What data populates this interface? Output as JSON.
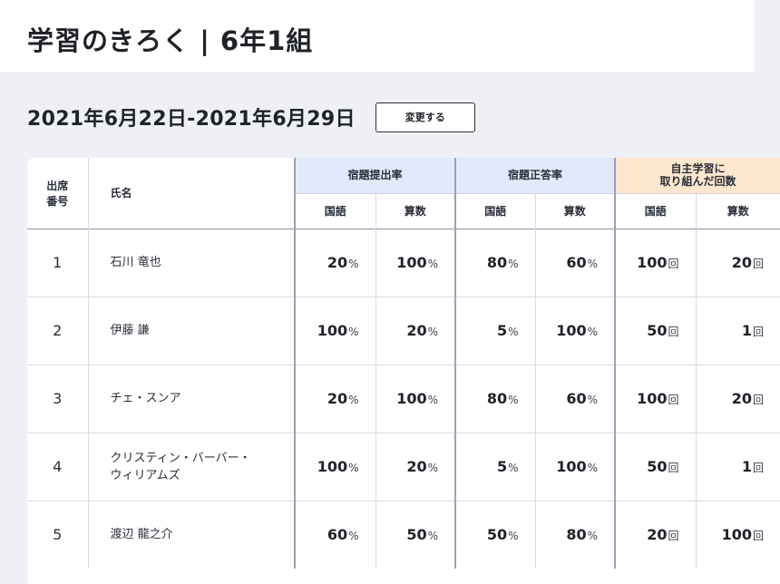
{
  "header": {
    "title": "学習のきろく | 6年1組"
  },
  "range": {
    "label": "2021年6月22日-2021年6月29日",
    "change_button": "変更する"
  },
  "table": {
    "col_no": [
      "出席",
      "番号"
    ],
    "col_name": "氏名",
    "groups": [
      {
        "label": [
          "宿題提出率"
        ],
        "subs": [
          "国語",
          "算数"
        ]
      },
      {
        "label": [
          "宿題正答率"
        ],
        "subs": [
          "国語",
          "算数"
        ]
      },
      {
        "label": [
          "自主学習に",
          "取り組んだ回数"
        ],
        "subs": [
          "国語",
          "算数"
        ]
      }
    ],
    "rows": [
      {
        "no": "1",
        "name": [
          "石川 竜也"
        ],
        "values": [
          [
            "20",
            "%"
          ],
          [
            "100",
            "%"
          ],
          [
            "80",
            "%"
          ],
          [
            "60",
            "%"
          ],
          [
            "100",
            "回"
          ],
          [
            "20",
            "回"
          ]
        ]
      },
      {
        "no": "2",
        "name": [
          "伊藤 謙"
        ],
        "values": [
          [
            "100",
            "%"
          ],
          [
            "20",
            "%"
          ],
          [
            "5",
            "%"
          ],
          [
            "100",
            "%"
          ],
          [
            "50",
            "回"
          ],
          [
            "1",
            "回"
          ]
        ]
      },
      {
        "no": "3",
        "name": [
          "チェ・スンア"
        ],
        "values": [
          [
            "20",
            "%"
          ],
          [
            "100",
            "%"
          ],
          [
            "80",
            "%"
          ],
          [
            "60",
            "%"
          ],
          [
            "100",
            "回"
          ],
          [
            "20",
            "回"
          ]
        ]
      },
      {
        "no": "4",
        "name": [
          "クリスティン・バーバー・",
          "ウィリアムズ"
        ],
        "values": [
          [
            "100",
            "%"
          ],
          [
            "20",
            "%"
          ],
          [
            "5",
            "%"
          ],
          [
            "100",
            "%"
          ],
          [
            "50",
            "回"
          ],
          [
            "1",
            "回"
          ]
        ]
      },
      {
        "no": "5",
        "name": [
          "渡辺 龍之介"
        ],
        "values": [
          [
            "60",
            "%"
          ],
          [
            "50",
            "%"
          ],
          [
            "50",
            "%"
          ],
          [
            "80",
            "%"
          ],
          [
            "20",
            "回"
          ],
          [
            "100",
            "回"
          ]
        ]
      }
    ]
  }
}
